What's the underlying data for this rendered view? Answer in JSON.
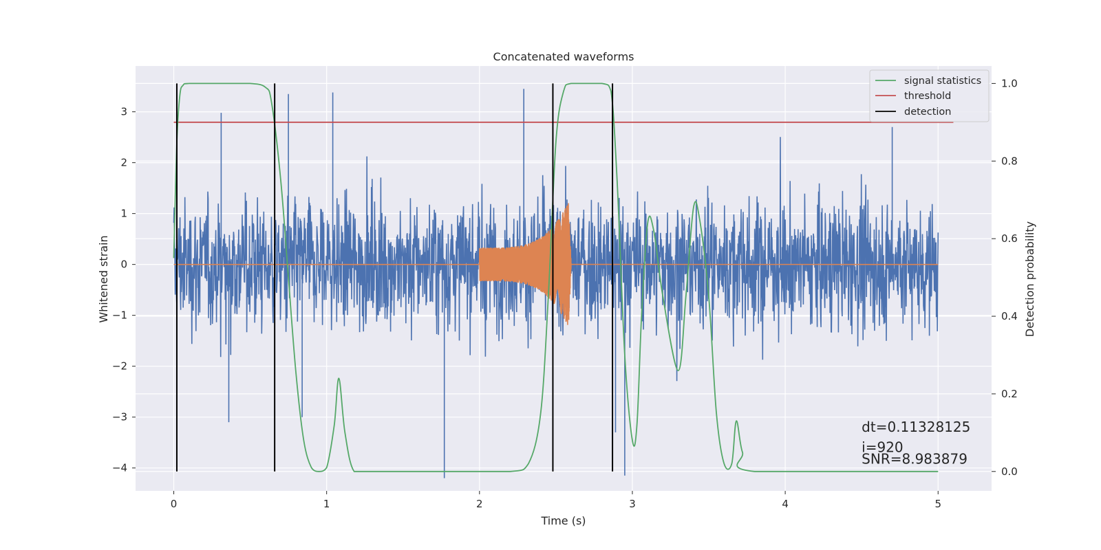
{
  "chart_data": {
    "type": "line",
    "title": "Concatenated waveforms",
    "xlabel": "Time (s)",
    "ylabel": "Whitened strain",
    "y2label": "Detection probability",
    "xlim": [
      -0.25,
      5.35
    ],
    "ylim": [
      -4.45,
      3.9
    ],
    "y2lim": [
      -0.05,
      1.045
    ],
    "x_ticks": [
      0,
      1,
      2,
      3,
      4,
      5
    ],
    "x_tick_labels": [
      "0",
      "1",
      "2",
      "3",
      "4",
      "5"
    ],
    "y_ticks": [
      3,
      2,
      1,
      0,
      -1,
      -2,
      -3,
      -4
    ],
    "y_tick_labels": [
      "3",
      "2",
      "1",
      "0",
      "−1",
      "−2",
      "−3",
      "−4"
    ],
    "y2_ticks": [
      1.0,
      0.8,
      0.6,
      0.4,
      0.2,
      0.0
    ],
    "y2_tick_labels": [
      "1.0",
      "0.8",
      "0.6",
      "0.4",
      "0.2",
      "0.0"
    ],
    "grid": true,
    "legend_position": "top-right",
    "colors": {
      "background": "#eaeaf2",
      "strain": "#4c72b0",
      "injected": "#dd8452",
      "signal_statistics": "#55a868",
      "threshold": "#c44e52",
      "detection": "#000000"
    },
    "series": [
      {
        "axis": "left",
        "note": "whitened strain noise, sampled envelope",
        "x_range": [
          0,
          5
        ],
        "typical_amplitude": 1.8,
        "peak_values": [
          {
            "x": 0.31,
            "y": 2.98
          },
          {
            "x": 0.36,
            "y": -3.1
          },
          {
            "x": 0.75,
            "y": 3.35
          },
          {
            "x": 0.84,
            "y": -3.0
          },
          {
            "x": 1.04,
            "y": 3.38
          },
          {
            "x": 1.77,
            "y": -4.2
          },
          {
            "x": 2.29,
            "y": 3.45
          },
          {
            "x": 2.89,
            "y": -3.3
          },
          {
            "x": 2.95,
            "y": -4.15
          },
          {
            "x": 4.7,
            "y": 2.7
          }
        ]
      },
      {
        "axis": "left",
        "note": "injected chirp waveform",
        "x_range": [
          2.0,
          2.6
        ],
        "amplitude_start": 0.33,
        "amplitude_peak": 1.35
      },
      {
        "name": "signal statistics",
        "axis": "right",
        "x": [
          0.0,
          0.02,
          0.04,
          0.06,
          0.1,
          0.3,
          0.5,
          0.6,
          0.64,
          0.7,
          0.75,
          0.8,
          0.85,
          0.9,
          0.95,
          1.0,
          1.05,
          1.08,
          1.12,
          1.18,
          1.3,
          1.8,
          2.2,
          2.32,
          2.4,
          2.45,
          2.5,
          2.55,
          2.6,
          2.8,
          2.86,
          2.9,
          2.95,
          3.0,
          3.03,
          3.06,
          3.1,
          3.14,
          3.2,
          3.3,
          3.35,
          3.4,
          3.44,
          3.5,
          3.55,
          3.6,
          3.65,
          3.68,
          3.72,
          3.8,
          5.0
        ],
        "y": [
          0.55,
          0.85,
          0.97,
          0.995,
          1.0,
          1.0,
          1.0,
          0.99,
          0.95,
          0.75,
          0.5,
          0.25,
          0.08,
          0.01,
          0.0,
          0.01,
          0.12,
          0.24,
          0.1,
          0.0,
          0.0,
          0.0,
          0.0,
          0.02,
          0.15,
          0.45,
          0.85,
          0.98,
          1.0,
          1.0,
          0.98,
          0.75,
          0.3,
          0.08,
          0.12,
          0.4,
          0.64,
          0.62,
          0.45,
          0.26,
          0.45,
          0.68,
          0.65,
          0.45,
          0.15,
          0.02,
          0.02,
          0.13,
          0.05,
          0.0,
          0.0
        ]
      },
      {
        "name": "threshold",
        "axis": "right",
        "x": [
          0.0,
          5.1
        ],
        "y": [
          0.9,
          0.9
        ]
      }
    ],
    "detections": {
      "name": "detection",
      "x": [
        0.02,
        0.66,
        2.48,
        2.87
      ]
    },
    "annotations": [
      {
        "text": "dt=0.11328125",
        "x": 4.5,
        "y": 0.102
      },
      {
        "text": " i=920",
        "x": 4.5,
        "y": 0.05
      },
      {
        "text": "SNR=8.983879",
        "x": 4.5,
        "y": 0.02
      }
    ]
  }
}
